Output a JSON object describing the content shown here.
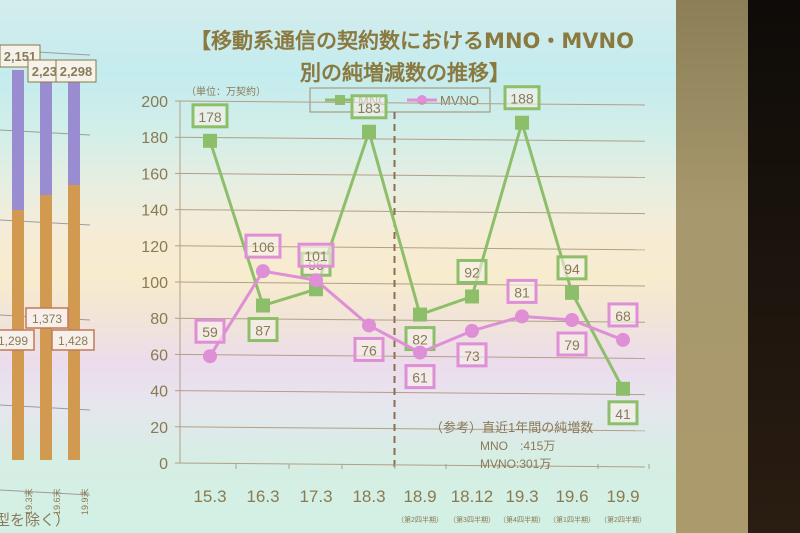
{
  "slide": {
    "title_line1": "【移動系通信の契約数におけるMNO・MVNO",
    "title_line2": "別の純増減数の推移】",
    "unit_label": "（単位：万契約）",
    "note": {
      "heading": "（参考）直近1年間の純増数",
      "mno": "MNO　:415万",
      "mvno": "MVNO:301万"
    },
    "left_chart_footer": "型を除く）"
  },
  "colors": {
    "mno": "#8dbf6a",
    "mvno": "#de8fd6",
    "axis_text": "#8a7a52",
    "title": "#8a7a40",
    "grid": "#b39f86",
    "bar_orange": "#d29a50",
    "bar_purple": "#9a8cd0"
  },
  "left_chart": {
    "categories": [
      "19.3末",
      "19.6末",
      "19.9末"
    ],
    "totals": [
      "2,151",
      "2,230",
      "2,298"
    ],
    "partial_total": "0",
    "lower": [
      "1,299",
      "1,373",
      "1,428"
    ],
    "partial_lower": "5"
  },
  "chart_data": {
    "type": "line",
    "title": "移動系通信の契約数におけるMNO・MVNO別の純増減数の推移",
    "ylabel": "単位：万契約",
    "xlabel": "",
    "ylim": [
      0,
      200
    ],
    "yticks": [
      0,
      20,
      40,
      60,
      80,
      100,
      120,
      140,
      160,
      180,
      200
    ],
    "grid": true,
    "legend_position": "top",
    "categories": [
      "15.3",
      "16.3",
      "17.3",
      "18.3",
      "18.9",
      "18.12",
      "19.3",
      "19.6",
      "19.9"
    ],
    "sublabels": [
      "",
      "",
      "",
      "",
      "（第2四半期）",
      "（第3四半期）",
      "（第4四半期）",
      "（第1四半期）",
      "（第2四半期）"
    ],
    "divider_after": "18.3",
    "series": [
      {
        "name": "MNO",
        "marker": "square",
        "values": [
          178,
          87,
          96,
          183,
          82,
          92,
          188,
          94,
          41
        ]
      },
      {
        "name": "MVNO",
        "marker": "circle",
        "values": [
          59,
          106,
          101,
          76,
          61,
          73,
          81,
          79,
          68
        ]
      }
    ]
  }
}
